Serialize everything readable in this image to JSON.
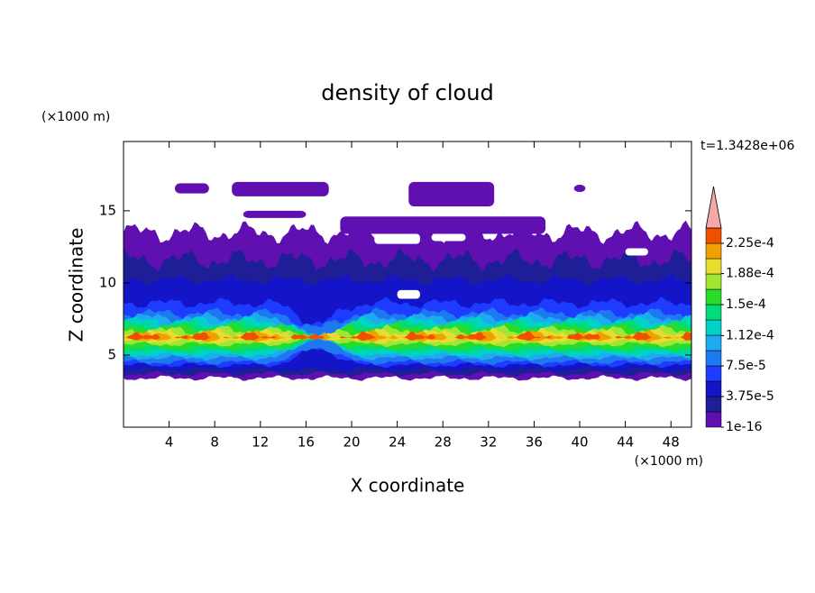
{
  "chart_data": {
    "type": "contour",
    "title": "density of cloud",
    "xlabel": "X coordinate",
    "ylabel": "Z coordinate",
    "x_unit": "(×1000 m)",
    "y_unit": "(×1000 m)",
    "annotation": "t=1.3428e+06",
    "xlim": [
      0,
      49.8
    ],
    "ylim": [
      0,
      19.8
    ],
    "xticks": [
      4,
      8,
      12,
      16,
      20,
      24,
      28,
      32,
      36,
      40,
      44,
      48
    ],
    "yticks": [
      5,
      10,
      15
    ],
    "colorbar": {
      "clim": [
        1e-16,
        0.00024375
      ],
      "ticks": [
        {
          "value": 1e-16,
          "label": "1e-16"
        },
        {
          "value": 3.75e-05,
          "label": "3.75e-5"
        },
        {
          "value": 7.5e-05,
          "label": "7.5e-5"
        },
        {
          "value": 0.000112,
          "label": "1.12e-4"
        },
        {
          "value": 0.00015,
          "label": "1.5e-4"
        },
        {
          "value": 0.000188,
          "label": "1.88e-4"
        },
        {
          "value": 0.000225,
          "label": "2.25e-4"
        }
      ],
      "colors": [
        "#6010b0",
        "#1e1e96",
        "#1414c8",
        "#1e3cff",
        "#1e78f0",
        "#1eaaf0",
        "#00d2c8",
        "#00dc78",
        "#28dc28",
        "#a0e632",
        "#e6dc32",
        "#f0a000",
        "#f05000"
      ],
      "extend_color": "#f4a8a8"
    }
  }
}
